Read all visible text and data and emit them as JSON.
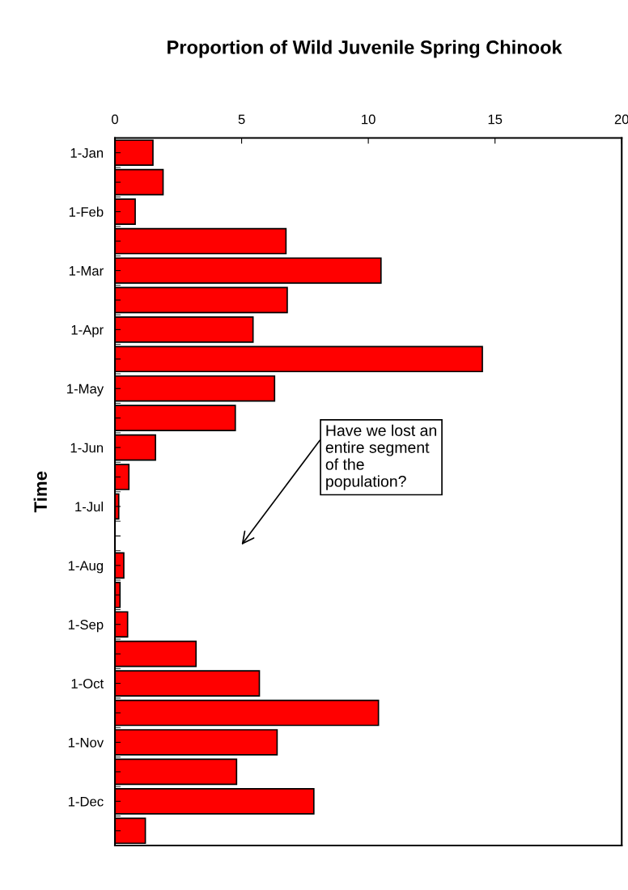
{
  "chart_data": {
    "type": "bar",
    "orientation": "horizontal",
    "title": "Proportion of Wild Juvenile Spring Chinook",
    "ylabel": "Time",
    "categories": [
      "1-Jan",
      null,
      "1-Feb",
      null,
      "1-Mar",
      null,
      "1-Apr",
      null,
      "1-May",
      null,
      "1-Jun",
      null,
      "1-Jul",
      null,
      "1-Aug",
      null,
      "1-Sep",
      null,
      "1-Oct",
      null,
      "1-Nov",
      null,
      "1-Dec",
      null
    ],
    "values": [
      1.5,
      1.9,
      0.8,
      6.75,
      10.5,
      6.8,
      5.45,
      14.5,
      6.3,
      4.75,
      1.6,
      0.55,
      0.15,
      null,
      0.35,
      0.2,
      0.5,
      3.2,
      5.7,
      10.4,
      6.4,
      4.8,
      7.85,
      1.2
    ],
    "color": "#ff0000",
    "xlim": [
      0,
      20
    ],
    "xticks": [
      0,
      5,
      10,
      15,
      20
    ],
    "grid": false,
    "legend": false,
    "annotations": [
      "Have we lost an\nentire segment\nof the\npopulation?"
    ]
  }
}
